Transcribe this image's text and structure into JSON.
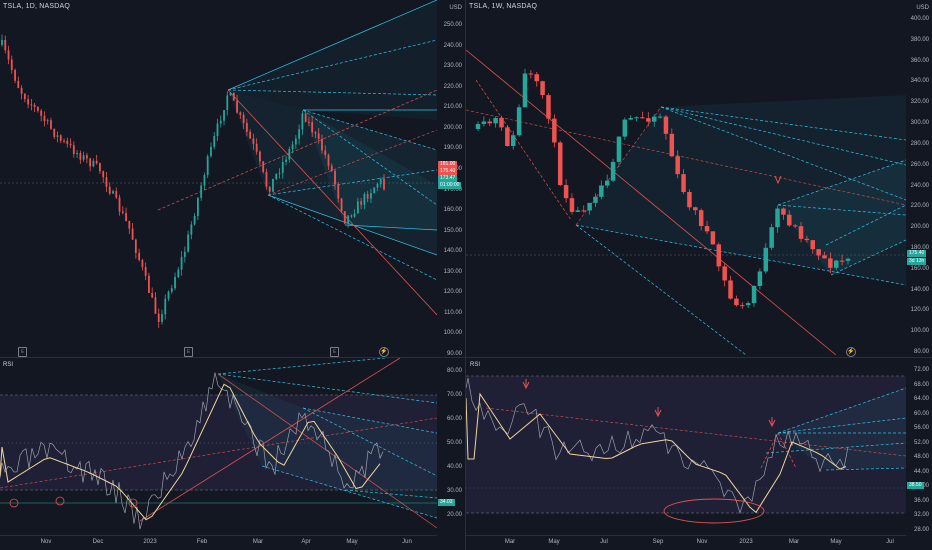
{
  "colors": {
    "background": "#131722",
    "bull": "#26a69a",
    "bear": "#ef5350",
    "fork_blue": "#2ec4e6",
    "fork_red": "#e0524f",
    "rsi_line": "#9aa0ab",
    "rsi_ma": "#f2d69a",
    "rsi_band": "#7e57c2"
  },
  "left_chart": {
    "title": "TSLA, 1D, NASDAQ",
    "currency": "USD",
    "price_ticks": [
      "250.00",
      "240.00",
      "230.00",
      "220.00",
      "210.00",
      "200.00",
      "190.00",
      "180.00",
      "170.00",
      "160.00",
      "150.00",
      "140.00",
      "130.00",
      "120.00",
      "110.00",
      "100.00",
      "90.00"
    ],
    "price_badges": [
      {
        "text": "181.00",
        "color": "#ef5350"
      },
      {
        "text": "175.40",
        "color": "#ef5350"
      },
      {
        "text": "173.47",
        "color": "#26a69a"
      },
      {
        "text": "01:00:00",
        "color": "#26a69a"
      }
    ],
    "event_icons": [
      "E",
      "E",
      "E"
    ],
    "flash_icon": "lightning-icon",
    "rsi": {
      "label": "RSI",
      "ticks": [
        "80.00",
        "70.00",
        "60.00",
        "50.00",
        "40.00",
        "30.00",
        "20.00"
      ],
      "badge": "34.03"
    },
    "x_labels": [
      "Nov",
      "Dec",
      "2023",
      "Feb",
      "Mar",
      "Apr",
      "May",
      "Jun"
    ]
  },
  "right_chart": {
    "title": "TSLA, 1W, NASDAQ",
    "currency": "USD",
    "price_ticks": [
      "400.00",
      "380.00",
      "360.00",
      "340.00",
      "320.00",
      "300.00",
      "280.00",
      "260.00",
      "240.00",
      "220.00",
      "200.00",
      "180.00",
      "160.00",
      "140.00",
      "120.00",
      "100.00",
      "80.00"
    ],
    "price_badges": [
      {
        "text": "175.40",
        "color": "#26a69a"
      },
      {
        "text": "3d 13h",
        "color": "#26a69a"
      }
    ],
    "flash_icon": "lightning-icon",
    "rsi": {
      "label": "RSI",
      "ticks": [
        "72.00",
        "68.00",
        "64.00",
        "60.00",
        "56.00",
        "52.00",
        "48.00",
        "44.00",
        "40.00",
        "36.00",
        "32.00",
        "28.00"
      ],
      "badge": "38.50"
    },
    "x_labels": [
      "Mar",
      "May",
      "Jul",
      "Sep",
      "Nov",
      "2023",
      "Mar",
      "May",
      "Jul"
    ]
  }
}
